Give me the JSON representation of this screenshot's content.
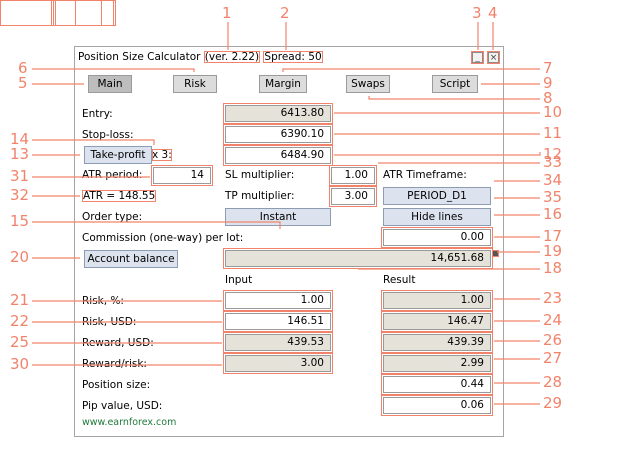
{
  "window": {
    "title": "Position Size Calculator",
    "version": "(ver. 2.22)",
    "spread": "Spread: 50",
    "minimize_glyph": "_",
    "close_glyph": "×"
  },
  "tabs": [
    {
      "label": "Main",
      "active": true
    },
    {
      "label": "Risk"
    },
    {
      "label": "Margin"
    },
    {
      "label": "Swaps"
    },
    {
      "label": "Script"
    }
  ],
  "form": {
    "entry_label": "Entry:",
    "entry_value": "6413.80",
    "stoploss_label": "Stop-loss:",
    "stoploss_value": "6390.10",
    "takeprofit_button": "Take-profit",
    "takeprofit_multiplier": "x 3:",
    "takeprofit_value": "6484.90",
    "atr_period_label": "ATR period:",
    "atr_period_value": "14",
    "sl_multiplier_label": "SL multiplier:",
    "sl_multiplier_value": "1.00",
    "atr_timeframe_label": "ATR Timeframe:",
    "atr_value": "ATR = 148.55",
    "tp_multiplier_label": "TP multiplier:",
    "tp_multiplier_value": "3.00",
    "timeframe_button": "PERIOD_D1",
    "order_type_label": "Order type:",
    "order_type_button": "Instant",
    "hide_lines_button": "Hide lines",
    "commission_label": "Commission (one-way) per lot:",
    "commission_value": "0.00",
    "account_button": "Account balance",
    "account_value": "14,651.68"
  },
  "results": {
    "input_header": "Input",
    "result_header": "Result",
    "rows": [
      {
        "label": "Risk, %:",
        "input": "1.00",
        "result": "1.00"
      },
      {
        "label": "Risk, USD:",
        "input": "146.51",
        "result": "146.47"
      },
      {
        "label": "Reward, USD:",
        "input": "439.53",
        "result": "439.39"
      },
      {
        "label": "Reward/risk:",
        "input": "3.00",
        "result": "2.99"
      },
      {
        "label": "Position size:",
        "result": "0.44"
      },
      {
        "label": "Pip value, USD:",
        "result": "0.06"
      }
    ]
  },
  "footer": {
    "link": "www.earnforex.com"
  },
  "callouts": [
    "1",
    "2",
    "3",
    "4",
    "5",
    "6",
    "7",
    "8",
    "9",
    "10",
    "11",
    "12",
    "13",
    "14",
    "15",
    "16",
    "17",
    "18",
    "19",
    "20",
    "21",
    "22",
    "23",
    "24",
    "25",
    "26",
    "27",
    "28",
    "29",
    "30",
    "31",
    "32",
    "33",
    "34",
    "35"
  ],
  "colors": {
    "annotation": "#f2836b",
    "readonly_field": "#e4e2d9",
    "blue_button": "#dde3ee",
    "link": "#1f7a3a"
  }
}
